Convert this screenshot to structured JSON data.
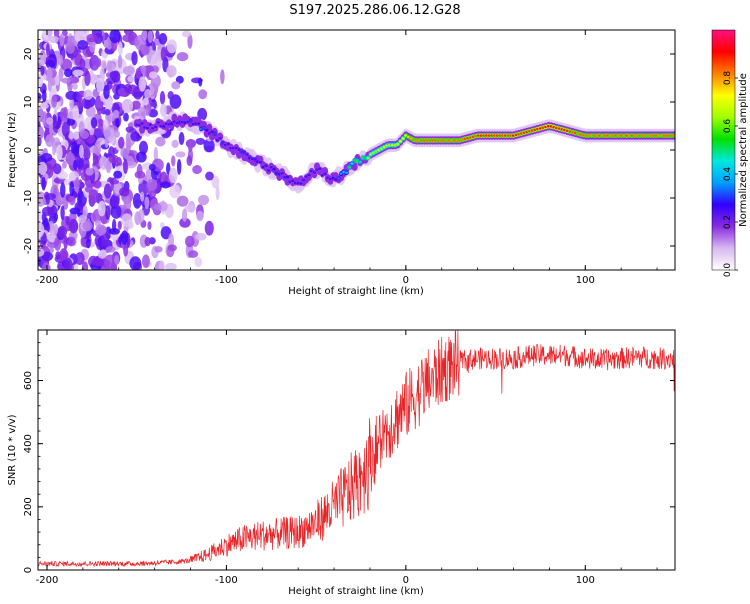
{
  "title": "S197.2025.286.06.12.G28",
  "chart_data": [
    {
      "type": "heatmap",
      "title": "S197.2025.286.06.12.G28",
      "xlabel": "Height of straight line (km)",
      "ylabel": "Frequency (Hz)",
      "xlim": [
        -205,
        150
      ],
      "ylim": [
        -25,
        25
      ],
      "xticks": [
        -200,
        -100,
        0,
        100
      ],
      "yticks": [
        -20,
        -10,
        0,
        10,
        20
      ],
      "colorbar": {
        "label": "Normalized spectral amplitude",
        "range": [
          0,
          1
        ],
        "ticks": [
          "0.0",
          "0.2",
          "0.4",
          "0.6",
          "0.8"
        ],
        "colors": [
          "#ffffff",
          "#d8b8f0",
          "#8a2be2",
          "#3000ff",
          "#00a0ff",
          "#00e8e0",
          "#00e000",
          "#a0ff00",
          "#ffff00",
          "#ff8000",
          "#ff0000",
          "#ff1080"
        ]
      },
      "ridge": {
        "x": [
          -150,
          -140,
          -130,
          -120,
          -110,
          -100,
          -90,
          -80,
          -70,
          -60,
          -50,
          -40,
          -35,
          -30,
          -20,
          -10,
          -5,
          0,
          5,
          10,
          20,
          30,
          40,
          50,
          60,
          70,
          80,
          90,
          100,
          110,
          120,
          130,
          140,
          150
        ],
        "freq": [
          5,
          5,
          6,
          6,
          4,
          1,
          -1,
          -3,
          -5,
          -7,
          -4,
          -6,
          -5,
          -3,
          -1,
          1,
          1,
          3,
          2,
          2,
          2,
          2,
          3,
          3,
          3,
          4,
          5,
          4,
          3,
          3,
          3,
          3,
          3,
          3
        ],
        "amplitude": [
          0.2,
          0.25,
          0.3,
          0.35,
          0.35,
          0.3,
          0.3,
          0.3,
          0.3,
          0.3,
          0.25,
          0.3,
          0.45,
          0.55,
          0.65,
          0.7,
          0.7,
          0.75,
          0.85,
          0.85,
          0.85,
          0.85,
          0.9,
          0.9,
          0.9,
          0.9,
          0.95,
          0.9,
          0.85,
          0.85,
          0.85,
          0.85,
          0.85,
          0.85
        ]
      }
    },
    {
      "type": "line",
      "xlabel": "Height of straight line (km)",
      "ylabel": "SNR (10 * v/v)",
      "xlim": [
        -205,
        150
      ],
      "ylim": [
        0,
        760
      ],
      "xticks": [
        -200,
        -100,
        0,
        100
      ],
      "yticks": [
        0,
        200,
        400,
        600
      ],
      "series": [
        {
          "name": "SNR",
          "color": "#e8262a",
          "x": [
            -205,
            -190,
            -180,
            -170,
            -160,
            -150,
            -140,
            -130,
            -120,
            -110,
            -100,
            -90,
            -80,
            -70,
            -60,
            -50,
            -40,
            -30,
            -20,
            -10,
            0,
            10,
            20,
            30,
            40,
            50,
            60,
            70,
            80,
            90,
            100,
            110,
            120,
            130,
            140,
            150
          ],
          "values": [
            20,
            20,
            20,
            20,
            20,
            20,
            22,
            25,
            30,
            50,
            80,
            100,
            110,
            115,
            120,
            150,
            200,
            260,
            350,
            450,
            520,
            580,
            630,
            660,
            670,
            670,
            670,
            680,
            680,
            680,
            670,
            665,
            670,
            675,
            670,
            670
          ]
        }
      ]
    }
  ]
}
